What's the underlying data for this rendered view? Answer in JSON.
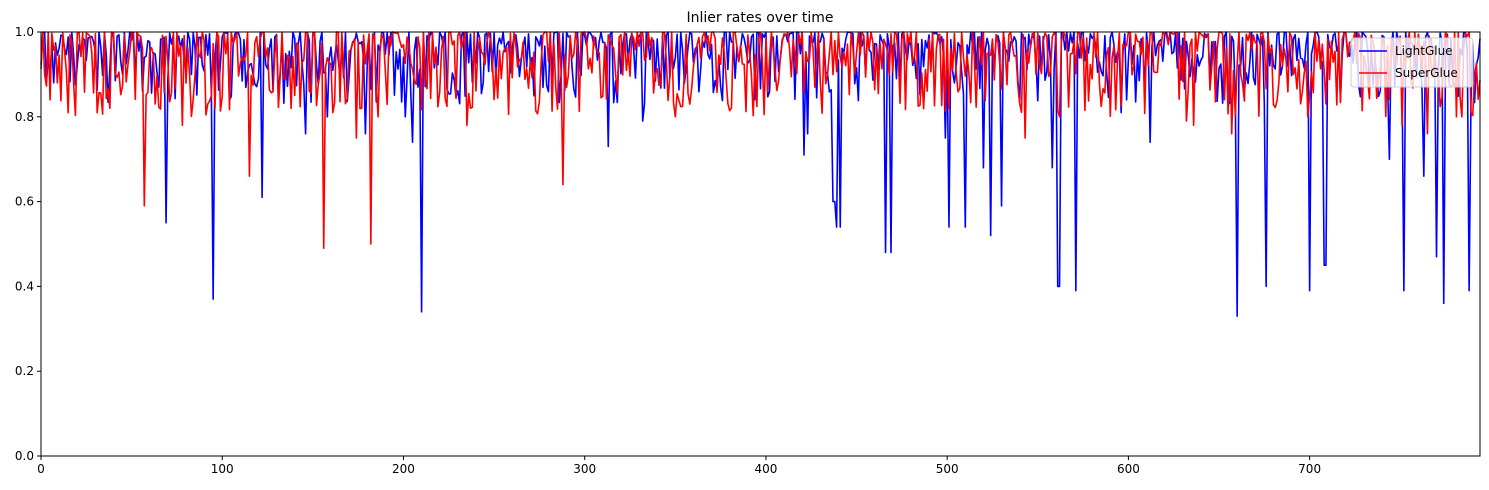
{
  "chart_data": {
    "type": "line",
    "title": "Inlier rates over time",
    "xlabel": "",
    "ylabel": "",
    "xlim": [
      0,
      794
    ],
    "ylim": [
      0,
      1.0
    ],
    "xticks": [
      0,
      100,
      200,
      300,
      400,
      500,
      600,
      700
    ],
    "xtick_labels": [
      "0",
      "100",
      "200",
      "300",
      "400",
      "500",
      "600",
      "700"
    ],
    "yticks": [
      0,
      0.2,
      0.4,
      0.6,
      0.8,
      1.0
    ],
    "ytick_labels": [
      "0.0",
      "0.2",
      "0.4",
      "0.6",
      "0.8",
      "1.0"
    ],
    "grid": false,
    "legend_position": "top-right",
    "colors": {
      "LightGlue": "#0000ff",
      "SuperGlue": "#ff0000"
    },
    "series": [
      {
        "name": "LightGlue",
        "dips": [
          [
            57,
            0.94
          ],
          [
            69,
            0.55
          ],
          [
            95,
            0.37
          ],
          [
            122,
            0.61
          ],
          [
            146,
            0.76
          ],
          [
            158,
            0.8
          ],
          [
            179,
            0.76
          ],
          [
            201,
            0.8
          ],
          [
            205,
            0.74
          ],
          [
            210,
            0.34
          ],
          [
            313,
            0.73
          ],
          [
            332,
            0.79
          ],
          [
            421,
            0.71
          ],
          [
            423,
            0.76
          ],
          [
            437,
            0.6
          ],
          [
            438,
            0.6
          ],
          [
            439,
            0.54
          ],
          [
            441,
            0.54
          ],
          [
            466,
            0.48
          ],
          [
            469,
            0.48
          ],
          [
            499,
            0.75
          ],
          [
            501,
            0.54
          ],
          [
            510,
            0.54
          ],
          [
            520,
            0.68
          ],
          [
            524,
            0.52
          ],
          [
            530,
            0.59
          ],
          [
            558,
            0.68
          ],
          [
            561,
            0.4
          ],
          [
            562,
            0.4
          ],
          [
            571,
            0.39
          ],
          [
            596,
            0.81
          ],
          [
            599,
            0.84
          ],
          [
            612,
            0.74
          ],
          [
            660,
            0.33
          ],
          [
            676,
            0.4
          ],
          [
            700,
            0.39
          ],
          [
            708,
            0.45
          ],
          [
            709,
            0.45
          ],
          [
            744,
            0.7
          ],
          [
            752,
            0.39
          ],
          [
            763,
            0.66
          ],
          [
            770,
            0.47
          ],
          [
            774,
            0.36
          ],
          [
            788,
            0.39
          ]
        ]
      },
      {
        "name": "SuperGlue",
        "dips": [
          [
            5,
            0.84
          ],
          [
            38,
            0.82
          ],
          [
            57,
            0.59
          ],
          [
            78,
            0.78
          ],
          [
            92,
            0.83
          ],
          [
            96,
            0.82
          ],
          [
            115,
            0.66
          ],
          [
            138,
            0.82
          ],
          [
            156,
            0.49
          ],
          [
            161,
            0.81
          ],
          [
            174,
            0.75
          ],
          [
            182,
            0.5
          ],
          [
            186,
            0.8
          ],
          [
            235,
            0.78
          ],
          [
            288,
            0.64
          ],
          [
            350,
            0.8
          ],
          [
            543,
            0.75
          ],
          [
            632,
            0.79
          ],
          [
            636,
            0.78
          ],
          [
            657,
            0.76
          ],
          [
            751,
            0.78
          ],
          [
            765,
            0.76
          ],
          [
            781,
            0.8
          ],
          [
            784,
            0.8
          ]
        ]
      }
    ]
  }
}
